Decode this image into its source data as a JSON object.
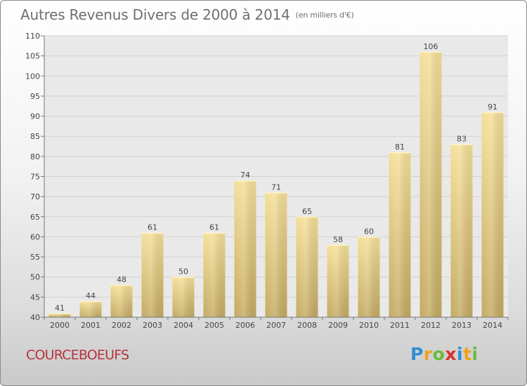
{
  "chart_data": {
    "type": "bar",
    "title": "Autres Revenus Divers de 2000 à 2014",
    "subtitle": "(en milliers d'€)",
    "categories": [
      "2000",
      "2001",
      "2002",
      "2003",
      "2004",
      "2005",
      "2006",
      "2007",
      "2008",
      "2009",
      "2010",
      "2011",
      "2012",
      "2013",
      "2014"
    ],
    "values": [
      41,
      44,
      48,
      61,
      50,
      61,
      74,
      71,
      65,
      58,
      60,
      81,
      106,
      83,
      91
    ],
    "ylim": [
      40,
      110
    ],
    "yticks": [
      "40",
      "45",
      "50",
      "55",
      "60",
      "65",
      "70",
      "75",
      "80",
      "85",
      "90",
      "95",
      "100",
      "105",
      "110"
    ],
    "grid": true,
    "bar_color": "#e6cc82",
    "legend": "none"
  },
  "footer": {
    "commune": "COURCEBOEUFS",
    "logo_text": "Proxiti",
    "commune_color": "#b5343c"
  },
  "logo_letters": [
    {
      "char": "P",
      "color": "#2f8fd3"
    },
    {
      "char": "r",
      "color": "#f0a21c"
    },
    {
      "char": "o",
      "color": "#6dbb3c"
    },
    {
      "char": "x",
      "color": "#d9302b"
    },
    {
      "char": "i",
      "color": "#2f8fd3"
    },
    {
      "char": "t",
      "color": "#f0a21c"
    },
    {
      "char": "i",
      "color": "#6dbb3c"
    }
  ]
}
